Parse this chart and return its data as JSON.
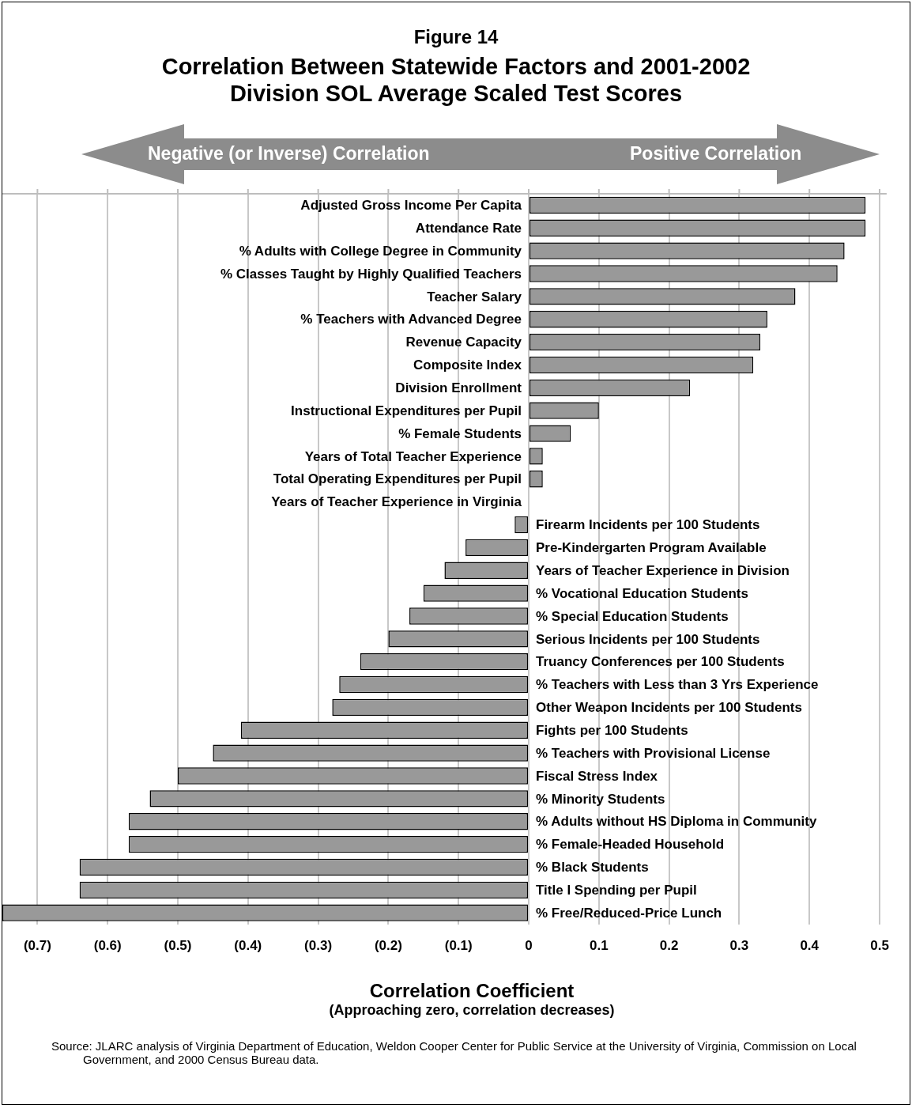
{
  "chart_data": {
    "type": "bar",
    "orientation": "horizontal",
    "title": "Figure 14",
    "subtitle": "Correlation Between Statewide Factors and 2001-2002 Division SOL Average Scaled Test Scores",
    "xlabel": "Correlation Coefficient",
    "annotations": [
      "Negative (or Inverse) Correlation",
      "Positive Correlation",
      "(Approaching zero, correlation decreases)",
      "Source: JLARC analysis of Virginia Department of Education, Weldon Cooper Center for Public Service at the University of Virginia, Commission on Local Government, and 2000 Census Bureau data."
    ],
    "categories": [
      "Adjusted Gross Income Per Capita",
      "Attendance Rate",
      "% Adults with College Degree in Community",
      "% Classes Taught by Highly Qualified Teachers",
      "Teacher Salary",
      "% Teachers with Advanced Degree",
      "Revenue Capacity",
      "Composite Index",
      "Division Enrollment",
      "Instructional Expenditures per Pupil",
      "% Female Students",
      "Years of Total Teacher Experience",
      "Total Operating Expenditures per Pupil",
      "Years of Teacher Experience in Virginia",
      "Firearm Incidents per 100 Students",
      "Pre-Kindergarten Program Available",
      "Years of Teacher Experience in Division",
      "% Vocational Education Students",
      "% Special Education Students",
      "Serious Incidents per 100 Students",
      "Truancy Conferences per 100 Students",
      "% Teachers with Less than 3 Yrs Experience",
      "Other Weapon Incidents per 100 Students",
      "Fights per 100 Students",
      "% Teachers with Provisional License",
      "Fiscal Stress Index",
      "% Minority Students",
      "% Adults without HS Diploma in Community",
      "% Female-Headed Household",
      "% Black Students",
      "Title I Spending per Pupil",
      "% Free/Reduced-Price Lunch"
    ],
    "values": [
      0.48,
      0.48,
      0.45,
      0.44,
      0.38,
      0.34,
      0.33,
      0.32,
      0.23,
      0.1,
      0.06,
      0.02,
      0.02,
      0.0,
      -0.02,
      -0.09,
      -0.12,
      -0.15,
      -0.17,
      -0.2,
      -0.24,
      -0.27,
      -0.28,
      -0.41,
      -0.45,
      -0.5,
      -0.54,
      -0.57,
      -0.57,
      -0.64,
      -0.64,
      -0.75
    ],
    "color": "#999999",
    "xlim": [
      -0.75,
      0.51
    ],
    "xticks": [
      {
        "value": -0.7,
        "label": "(0.7)"
      },
      {
        "value": -0.6,
        "label": "(0.6)"
      },
      {
        "value": -0.5,
        "label": "(0.5)"
      },
      {
        "value": -0.4,
        "label": "(0.4)"
      },
      {
        "value": -0.3,
        "label": "(0.3)"
      },
      {
        "value": -0.2,
        "label": "(0.2)"
      },
      {
        "value": -0.1,
        "label": "(0.1)"
      },
      0,
      0.1,
      0.2,
      0.3,
      0.4,
      0.5
    ],
    "grid": "x",
    "legend": false
  }
}
